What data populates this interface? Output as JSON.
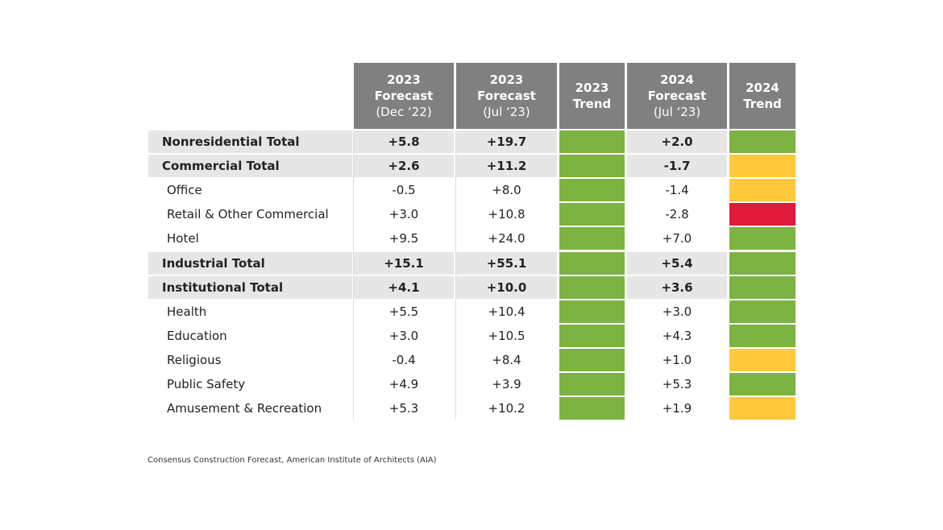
{
  "table": {
    "header": [
      {
        "lines": [
          "2023",
          "Forecast",
          "(Dec ‘22)"
        ]
      },
      {
        "lines": [
          "2023",
          "Forecast",
          "(Jul ‘23)"
        ]
      },
      {
        "lines": [
          "2023",
          "Trend"
        ]
      },
      {
        "lines": [
          "2024",
          "Forecast",
          "(Jul ‘23)"
        ]
      },
      {
        "lines": [
          "2024",
          "Trend"
        ]
      }
    ],
    "rows": [
      {
        "label": "Nonresidential Total",
        "total": true,
        "values": [
          "+5.8",
          "+19.7",
          "+2.0"
        ],
        "trend_2023": "#7cb342",
        "trend_2024": "#7cb342"
      },
      {
        "label": "Commercial Total",
        "total": true,
        "values": [
          "+2.6",
          "+11.2",
          "-1.7"
        ],
        "trend_2023": "#7cb342",
        "trend_2024": "#ffc83d"
      },
      {
        "label": "Office",
        "total": false,
        "values": [
          "-0.5",
          "+8.0",
          "-1.4"
        ],
        "trend_2023": "#7cb342",
        "trend_2024": "#ffc83d"
      },
      {
        "label": "Retail & Other Commercial",
        "total": false,
        "values": [
          "+3.0",
          "+10.8",
          "-2.8"
        ],
        "trend_2023": "#7cb342",
        "trend_2024": "#e0183a"
      },
      {
        "label": "Hotel",
        "total": false,
        "values": [
          "+9.5",
          "+24.0",
          "+7.0"
        ],
        "trend_2023": "#7cb342",
        "trend_2024": "#7cb342"
      },
      {
        "label": "Industrial Total",
        "total": true,
        "values": [
          "+15.1",
          "+55.1",
          "+5.4"
        ],
        "trend_2023": "#7cb342",
        "trend_2024": "#7cb342"
      },
      {
        "label": "Institutional Total",
        "total": true,
        "values": [
          "+4.1",
          "+10.0",
          "+3.6"
        ],
        "trend_2023": "#7cb342",
        "trend_2024": "#7cb342"
      },
      {
        "label": "Health",
        "total": false,
        "values": [
          "+5.5",
          "+10.4",
          "+3.0"
        ],
        "trend_2023": "#7cb342",
        "trend_2024": "#7cb342"
      },
      {
        "label": "Education",
        "total": false,
        "values": [
          "+3.0",
          "+10.5",
          "+4.3"
        ],
        "trend_2023": "#7cb342",
        "trend_2024": "#7cb342"
      },
      {
        "label": "Religious",
        "total": false,
        "values": [
          "-0.4",
          "+8.4",
          "+1.0"
        ],
        "trend_2023": "#7cb342",
        "trend_2024": "#ffc83d"
      },
      {
        "label": "Public Safety",
        "total": false,
        "values": [
          "+4.9",
          "+3.9",
          "+5.3"
        ],
        "trend_2023": "#7cb342",
        "trend_2024": "#7cb342"
      },
      {
        "label": "Amusement & Recreation",
        "total": false,
        "values": [
          "+5.3",
          "+10.2",
          "+1.9"
        ],
        "trend_2023": "#7cb342",
        "trend_2024": "#ffc83d"
      }
    ]
  },
  "source": "Consensus Construction Forecast, American Institute of Architects (AIA)"
}
